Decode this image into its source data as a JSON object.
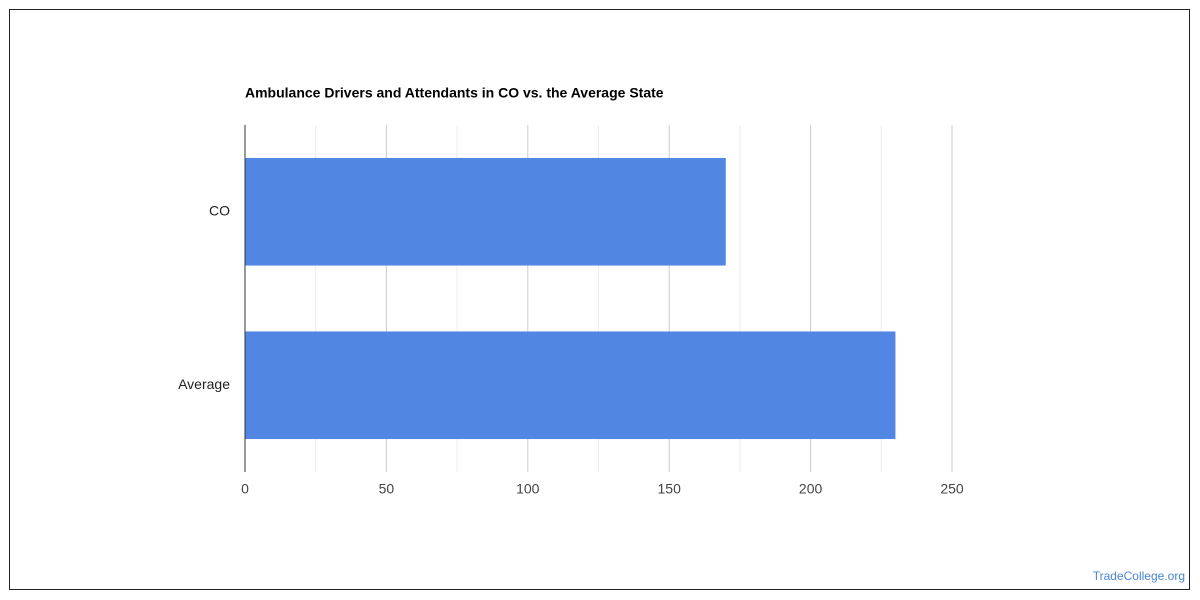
{
  "chart_data": {
    "type": "bar",
    "orientation": "horizontal",
    "title": "Ambulance Drivers and Attendants in CO vs. the Average State",
    "categories": [
      "CO",
      "Average"
    ],
    "values": [
      170,
      230
    ],
    "color": "#5286e3",
    "xlim": [
      0,
      250
    ],
    "xticks": [
      0,
      50,
      100,
      150,
      200,
      250
    ],
    "minor_xticks": [
      25,
      75,
      125,
      175,
      225
    ],
    "grid": true,
    "source": "TradeCollege.org"
  }
}
